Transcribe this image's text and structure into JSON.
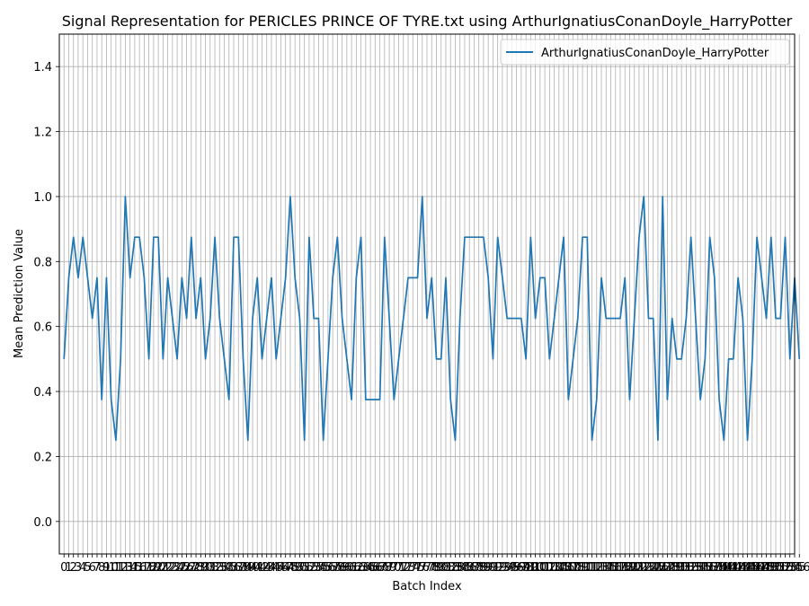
{
  "chart_data": {
    "type": "line",
    "title": "Signal Representation for PERICLES PRINCE OF TYRE.txt using ArthurIgnatiusConanDoyle_HarryPotter",
    "xlabel": "Batch Index",
    "ylabel": "Mean Prediction Value",
    "ylim": [
      -0.1,
      1.5
    ],
    "yticks": [
      0.0,
      0.2,
      0.4,
      0.6,
      0.8,
      1.0,
      1.2,
      1.4
    ],
    "xlim": [
      -1,
      155
    ],
    "grid": true,
    "legend_position": "top-right",
    "color": "#1f77b4",
    "series": [
      {
        "name": "ArthurIgnatiusConanDoyle_HarryPotter",
        "values": [
          0.5,
          0.75,
          0.875,
          0.75,
          0.875,
          0.75,
          0.625,
          0.75,
          0.375,
          0.75,
          0.375,
          0.25,
          0.5,
          1.0,
          0.75,
          0.875,
          0.875,
          0.75,
          0.5,
          0.875,
          0.875,
          0.5,
          0.75,
          0.625,
          0.5,
          0.75,
          0.625,
          0.875,
          0.625,
          0.75,
          0.5,
          0.625,
          0.875,
          0.625,
          0.5,
          0.375,
          0.875,
          0.875,
          0.5,
          0.25,
          0.625,
          0.75,
          0.5,
          0.625,
          0.75,
          0.5,
          0.625,
          0.75,
          1.0,
          0.75,
          0.625,
          0.25,
          0.875,
          0.625,
          0.625,
          0.25,
          0.5,
          0.75,
          0.875,
          0.625,
          0.5,
          0.375,
          0.75,
          0.875,
          0.375,
          0.375,
          0.375,
          0.375,
          0.875,
          0.625,
          0.375,
          0.5,
          0.625,
          0.75,
          0.75,
          0.75,
          1.0,
          0.625,
          0.75,
          0.5,
          0.5,
          0.75,
          0.375,
          0.25,
          0.625,
          0.875,
          0.875,
          0.875,
          0.875,
          0.875,
          0.75,
          0.5,
          0.875,
          0.75,
          0.625,
          0.625,
          0.625,
          0.625,
          0.5,
          0.875,
          0.625,
          0.75,
          0.75,
          0.5,
          0.625,
          0.75,
          0.875,
          0.375,
          0.5,
          0.625,
          0.875,
          0.875,
          0.25,
          0.375,
          0.75,
          0.625,
          0.625,
          0.625,
          0.625,
          0.75,
          0.375,
          0.625,
          0.875,
          1.0,
          0.625,
          0.625,
          0.25,
          1.0,
          0.375,
          0.625,
          0.5,
          0.5,
          0.625,
          0.875,
          0.625,
          0.375,
          0.5,
          0.875,
          0.75,
          0.375,
          0.25,
          0.5,
          0.5,
          0.75,
          0.625,
          0.25,
          0.5,
          0.875,
          0.75,
          0.625,
          0.875,
          0.625,
          0.625,
          0.875,
          0.5,
          0.75,
          0.5
        ]
      }
    ]
  }
}
